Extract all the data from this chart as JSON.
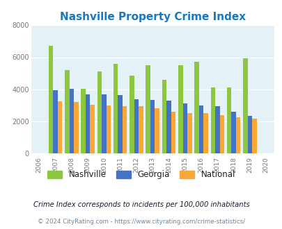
{
  "title": "Nashville Property Crime Index",
  "years": [
    2007,
    2008,
    2009,
    2010,
    2011,
    2012,
    2013,
    2014,
    2015,
    2016,
    2017,
    2018,
    2019
  ],
  "nashville": [
    6700,
    5200,
    4050,
    5100,
    5600,
    4850,
    5500,
    4600,
    5500,
    5700,
    4100,
    4100,
    5950
  ],
  "georgia": [
    3950,
    4050,
    3700,
    3700,
    3650,
    3400,
    3350,
    3300,
    3100,
    3000,
    2950,
    2600,
    2350
  ],
  "national": [
    3250,
    3200,
    3050,
    3000,
    2950,
    2950,
    2800,
    2600,
    2500,
    2500,
    2400,
    2250,
    2150
  ],
  "nashville_color": "#8dc63f",
  "georgia_color": "#4472c4",
  "national_color": "#faa634",
  "bg_color": "#e4f1f7",
  "title_color": "#1a7abf",
  "xlim": [
    2005.5,
    2020.5
  ],
  "ylim": [
    0,
    8000
  ],
  "yticks": [
    0,
    2000,
    4000,
    6000,
    8000
  ],
  "bar_width": 0.28,
  "subtitle": "Crime Index corresponds to incidents per 100,000 inhabitants",
  "footer": "© 2024 CityRating.com - https://www.cityrating.com/crime-statistics/",
  "subtitle_color": "#1a1a2e",
  "footer_color": "#6688aa"
}
